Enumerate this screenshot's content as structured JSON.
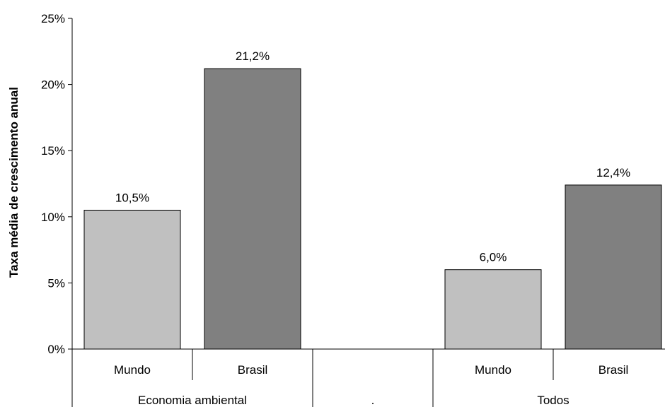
{
  "chart_data": {
    "type": "bar",
    "ylabel": "Taxa média de crescimento anual",
    "ylim": [
      0,
      25
    ],
    "y_ticks": [
      0,
      5,
      10,
      15,
      20,
      25
    ],
    "y_tick_labels": [
      "0%",
      "5%",
      "10%",
      "15%",
      "20%",
      "25%"
    ],
    "grid": false,
    "bars": [
      {
        "group": "Economia ambiental",
        "category": "Mundo",
        "value": 10.5,
        "label": "10,5%",
        "color": "#c0c0c0"
      },
      {
        "group": "Economia ambiental",
        "category": "Brasil",
        "value": 21.2,
        "label": "21,2%",
        "color": "#808080"
      },
      {
        "group": ".",
        "category": "",
        "value": null,
        "label": "",
        "color": "#ffffff"
      },
      {
        "group": "Todos",
        "category": "Mundo",
        "value": 6.0,
        "label": "6,0%",
        "color": "#c0c0c0"
      },
      {
        "group": "Todos",
        "category": "Brasil",
        "value": 12.4,
        "label": "12,4%",
        "color": "#808080"
      }
    ],
    "groups": [
      "Economia ambiental",
      ".",
      "Todos"
    ]
  }
}
